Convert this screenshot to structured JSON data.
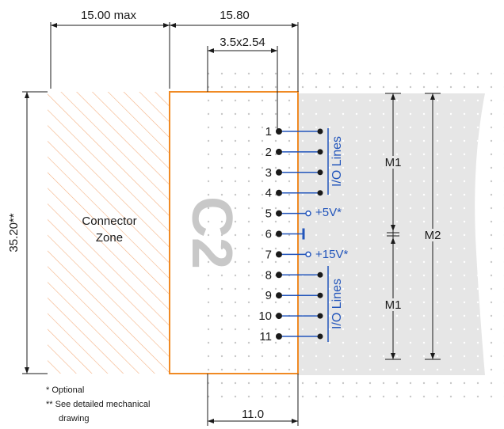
{
  "dimensions": {
    "connector_max": "15.00 max",
    "module_width": "15.80",
    "pin_grid": "3.5x2.54",
    "height": "35.20**",
    "bottom_width": "11.0"
  },
  "connector_zone": {
    "line1": "Connector",
    "line2": "Zone"
  },
  "module_label": "C2",
  "pins": [
    "1",
    "2",
    "3",
    "4",
    "5",
    "6",
    "7",
    "8",
    "9",
    "10",
    "11"
  ],
  "groups": {
    "io_top": "I/O Lines",
    "io_bottom": "I/O Lines",
    "plus5": "+5V*",
    "plus15": "+15V*",
    "m1_top": "M1",
    "m1_bottom": "M1",
    "m2": "M2"
  },
  "notes": {
    "optional": "* Optional",
    "mech_line1": "** See detailed mechanical",
    "mech_line2": "drawing"
  },
  "colors": {
    "module_border": "#f08a24",
    "hatch": "#f4b183",
    "signal": "#2255bb",
    "grid_dot": "#c8c8c8",
    "board": "#e6e6e6"
  }
}
